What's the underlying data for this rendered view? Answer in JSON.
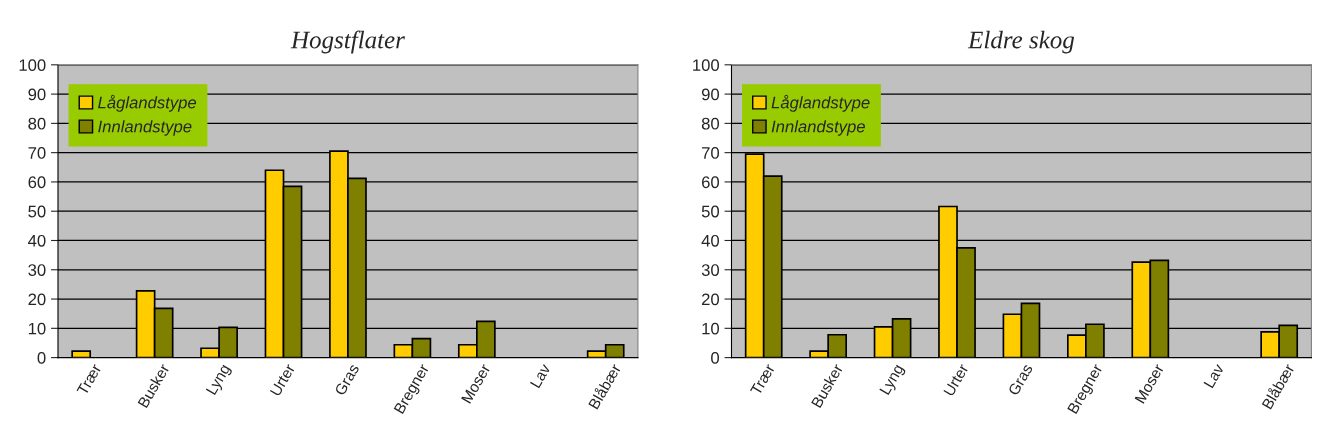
{
  "chart_data": [
    {
      "type": "bar",
      "title": "Hogstflater",
      "categories": [
        "Trær",
        "Busker",
        "Lyng",
        "Urter",
        "Gras",
        "Bregner",
        "Moser",
        "Lav",
        "Blåbær"
      ],
      "series": [
        {
          "name": "Låglandstype",
          "color": "#ffcc00",
          "values": [
            2.2,
            22.8,
            3.2,
            64,
            70.5,
            4.4,
            4.4,
            null,
            2.2
          ]
        },
        {
          "name": "Innlandstype",
          "color": "#808000",
          "values": [
            null,
            16.8,
            10.3,
            58.5,
            61.2,
            6.5,
            12.4,
            null,
            4.4
          ]
        }
      ],
      "ylim": [
        0,
        100
      ],
      "yticks": [
        0,
        10,
        20,
        30,
        40,
        50,
        60,
        70,
        80,
        90,
        100
      ],
      "grid": "y",
      "legend": "top left"
    },
    {
      "type": "bar",
      "title": "Eldre skog",
      "categories": [
        "Trær",
        "Busker",
        "Lyng",
        "Urter",
        "Gras",
        "Bregner",
        "Moser",
        "Lav",
        "Blåbær"
      ],
      "series": [
        {
          "name": "Låglandstype",
          "color": "#ffcc00",
          "values": [
            69.5,
            2.2,
            10.5,
            51.6,
            14.8,
            7.7,
            32.6,
            null,
            8.8
          ]
        },
        {
          "name": "Innlandstype",
          "color": "#808000",
          "values": [
            62,
            7.8,
            13.2,
            37.5,
            18.5,
            11.4,
            33.2,
            null,
            11
          ]
        }
      ],
      "ylim": [
        0,
        100
      ],
      "yticks": [
        0,
        10,
        20,
        30,
        40,
        50,
        60,
        70,
        80,
        90,
        100
      ],
      "grid": "y",
      "legend": "top left"
    }
  ]
}
